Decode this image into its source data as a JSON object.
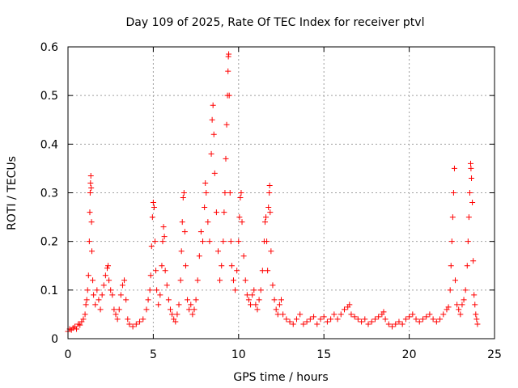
{
  "chart_data": {
    "type": "scatter",
    "title": "Day 109 of 2025, Rate Of TEC Index for receiver ptvl",
    "xlabel": "GPS time / hours",
    "ylabel": "ROTI / TECUs",
    "xlim": [
      0,
      25
    ],
    "ylim": [
      0,
      0.6
    ],
    "xticks": [
      0,
      5,
      10,
      15,
      20,
      25
    ],
    "yticks": [
      0,
      0.1,
      0.2,
      0.3,
      0.4,
      0.5,
      0.6
    ],
    "xtick_labels": [
      "0",
      "5",
      "10",
      "15",
      "20",
      "25"
    ],
    "ytick_labels": [
      "0",
      "0.1",
      "0.2",
      "0.3",
      "0.4",
      "0.5",
      "0.6"
    ],
    "grid": true,
    "marker": "plus",
    "color": "#ff0000",
    "series": [
      {
        "name": "ROTI",
        "points": [
          [
            0.0,
            0.015
          ],
          [
            0.1,
            0.02
          ],
          [
            0.2,
            0.018
          ],
          [
            0.3,
            0.022
          ],
          [
            0.4,
            0.025
          ],
          [
            0.5,
            0.02
          ],
          [
            0.6,
            0.03
          ],
          [
            0.7,
            0.028
          ],
          [
            0.8,
            0.035
          ],
          [
            0.9,
            0.04
          ],
          [
            1.0,
            0.05
          ],
          [
            1.05,
            0.07
          ],
          [
            1.1,
            0.08
          ],
          [
            1.15,
            0.1
          ],
          [
            1.2,
            0.13
          ],
          [
            1.25,
            0.2
          ],
          [
            1.28,
            0.26
          ],
          [
            1.3,
            0.3
          ],
          [
            1.32,
            0.32
          ],
          [
            1.34,
            0.335
          ],
          [
            1.36,
            0.31
          ],
          [
            1.38,
            0.24
          ],
          [
            1.4,
            0.18
          ],
          [
            1.45,
            0.12
          ],
          [
            1.5,
            0.09
          ],
          [
            1.6,
            0.07
          ],
          [
            1.7,
            0.1
          ],
          [
            1.8,
            0.08
          ],
          [
            1.9,
            0.06
          ],
          [
            2.0,
            0.09
          ],
          [
            2.1,
            0.11
          ],
          [
            2.2,
            0.13
          ],
          [
            2.3,
            0.145
          ],
          [
            2.35,
            0.15
          ],
          [
            2.4,
            0.12
          ],
          [
            2.5,
            0.1
          ],
          [
            2.6,
            0.09
          ],
          [
            2.7,
            0.06
          ],
          [
            2.8,
            0.05
          ],
          [
            2.9,
            0.04
          ],
          [
            3.0,
            0.06
          ],
          [
            3.1,
            0.09
          ],
          [
            3.2,
            0.11
          ],
          [
            3.3,
            0.12
          ],
          [
            3.4,
            0.08
          ],
          [
            3.5,
            0.04
          ],
          [
            3.6,
            0.03
          ],
          [
            3.8,
            0.025
          ],
          [
            4.0,
            0.03
          ],
          [
            4.2,
            0.035
          ],
          [
            4.4,
            0.04
          ],
          [
            4.6,
            0.06
          ],
          [
            4.7,
            0.08
          ],
          [
            4.8,
            0.1
          ],
          [
            4.85,
            0.13
          ],
          [
            4.9,
            0.19
          ],
          [
            4.95,
            0.25
          ],
          [
            5.0,
            0.28
          ],
          [
            5.05,
            0.27
          ],
          [
            5.1,
            0.2
          ],
          [
            5.15,
            0.14
          ],
          [
            5.2,
            0.1
          ],
          [
            5.3,
            0.07
          ],
          [
            5.4,
            0.09
          ],
          [
            5.5,
            0.15
          ],
          [
            5.55,
            0.2
          ],
          [
            5.6,
            0.23
          ],
          [
            5.65,
            0.21
          ],
          [
            5.7,
            0.14
          ],
          [
            5.8,
            0.11
          ],
          [
            5.9,
            0.08
          ],
          [
            6.0,
            0.06
          ],
          [
            6.1,
            0.05
          ],
          [
            6.2,
            0.04
          ],
          [
            6.3,
            0.035
          ],
          [
            6.4,
            0.05
          ],
          [
            6.5,
            0.07
          ],
          [
            6.6,
            0.12
          ],
          [
            6.65,
            0.18
          ],
          [
            6.7,
            0.24
          ],
          [
            6.75,
            0.29
          ],
          [
            6.8,
            0.3
          ],
          [
            6.85,
            0.22
          ],
          [
            6.9,
            0.15
          ],
          [
            7.0,
            0.08
          ],
          [
            7.1,
            0.06
          ],
          [
            7.2,
            0.07
          ],
          [
            7.3,
            0.05
          ],
          [
            7.4,
            0.06
          ],
          [
            7.5,
            0.08
          ],
          [
            7.6,
            0.12
          ],
          [
            7.7,
            0.17
          ],
          [
            7.8,
            0.22
          ],
          [
            7.9,
            0.2
          ],
          [
            8.0,
            0.27
          ],
          [
            8.05,
            0.32
          ],
          [
            8.1,
            0.3
          ],
          [
            8.2,
            0.24
          ],
          [
            8.3,
            0.2
          ],
          [
            8.4,
            0.38
          ],
          [
            8.45,
            0.45
          ],
          [
            8.5,
            0.48
          ],
          [
            8.55,
            0.42
          ],
          [
            8.6,
            0.34
          ],
          [
            8.7,
            0.26
          ],
          [
            8.8,
            0.18
          ],
          [
            8.9,
            0.12
          ],
          [
            9.0,
            0.15
          ],
          [
            9.1,
            0.2
          ],
          [
            9.15,
            0.26
          ],
          [
            9.2,
            0.3
          ],
          [
            9.25,
            0.37
          ],
          [
            9.3,
            0.44
          ],
          [
            9.35,
            0.5
          ],
          [
            9.38,
            0.55
          ],
          [
            9.4,
            0.58
          ],
          [
            9.42,
            0.585
          ],
          [
            9.45,
            0.5
          ],
          [
            9.5,
            0.3
          ],
          [
            9.55,
            0.2
          ],
          [
            9.6,
            0.15
          ],
          [
            9.7,
            0.12
          ],
          [
            9.8,
            0.1
          ],
          [
            9.9,
            0.14
          ],
          [
            10.0,
            0.2
          ],
          [
            10.05,
            0.25
          ],
          [
            10.1,
            0.29
          ],
          [
            10.15,
            0.3
          ],
          [
            10.2,
            0.24
          ],
          [
            10.3,
            0.17
          ],
          [
            10.4,
            0.12
          ],
          [
            10.5,
            0.09
          ],
          [
            10.6,
            0.08
          ],
          [
            10.7,
            0.07
          ],
          [
            10.8,
            0.09
          ],
          [
            10.9,
            0.1
          ],
          [
            11.0,
            0.07
          ],
          [
            11.1,
            0.06
          ],
          [
            11.2,
            0.08
          ],
          [
            11.3,
            0.1
          ],
          [
            11.4,
            0.14
          ],
          [
            11.5,
            0.2
          ],
          [
            11.55,
            0.24
          ],
          [
            11.6,
            0.25
          ],
          [
            11.65,
            0.2
          ],
          [
            11.7,
            0.14
          ],
          [
            11.75,
            0.27
          ],
          [
            11.8,
            0.3
          ],
          [
            11.82,
            0.315
          ],
          [
            11.85,
            0.26
          ],
          [
            11.9,
            0.18
          ],
          [
            12.0,
            0.11
          ],
          [
            12.1,
            0.08
          ],
          [
            12.2,
            0.06
          ],
          [
            12.3,
            0.05
          ],
          [
            12.4,
            0.07
          ],
          [
            12.5,
            0.08
          ],
          [
            12.6,
            0.05
          ],
          [
            12.8,
            0.04
          ],
          [
            13.0,
            0.035
          ],
          [
            13.2,
            0.03
          ],
          [
            13.4,
            0.04
          ],
          [
            13.6,
            0.05
          ],
          [
            13.8,
            0.03
          ],
          [
            14.0,
            0.035
          ],
          [
            14.2,
            0.04
          ],
          [
            14.4,
            0.045
          ],
          [
            14.6,
            0.03
          ],
          [
            14.8,
            0.04
          ],
          [
            15.0,
            0.045
          ],
          [
            15.2,
            0.035
          ],
          [
            15.4,
            0.04
          ],
          [
            15.6,
            0.05
          ],
          [
            15.8,
            0.04
          ],
          [
            16.0,
            0.05
          ],
          [
            16.2,
            0.06
          ],
          [
            16.4,
            0.065
          ],
          [
            16.5,
            0.07
          ],
          [
            16.6,
            0.05
          ],
          [
            16.8,
            0.045
          ],
          [
            17.0,
            0.04
          ],
          [
            17.2,
            0.035
          ],
          [
            17.4,
            0.04
          ],
          [
            17.6,
            0.03
          ],
          [
            17.8,
            0.035
          ],
          [
            18.0,
            0.04
          ],
          [
            18.2,
            0.045
          ],
          [
            18.4,
            0.05
          ],
          [
            18.5,
            0.055
          ],
          [
            18.6,
            0.04
          ],
          [
            18.8,
            0.03
          ],
          [
            19.0,
            0.025
          ],
          [
            19.2,
            0.03
          ],
          [
            19.4,
            0.035
          ],
          [
            19.6,
            0.03
          ],
          [
            19.8,
            0.04
          ],
          [
            20.0,
            0.045
          ],
          [
            20.2,
            0.05
          ],
          [
            20.4,
            0.04
          ],
          [
            20.6,
            0.035
          ],
          [
            20.8,
            0.04
          ],
          [
            21.0,
            0.045
          ],
          [
            21.2,
            0.05
          ],
          [
            21.4,
            0.04
          ],
          [
            21.6,
            0.035
          ],
          [
            21.8,
            0.04
          ],
          [
            22.0,
            0.05
          ],
          [
            22.2,
            0.06
          ],
          [
            22.3,
            0.065
          ],
          [
            22.4,
            0.1
          ],
          [
            22.45,
            0.15
          ],
          [
            22.5,
            0.2
          ],
          [
            22.55,
            0.25
          ],
          [
            22.6,
            0.3
          ],
          [
            22.65,
            0.35
          ],
          [
            22.7,
            0.12
          ],
          [
            22.8,
            0.07
          ],
          [
            22.9,
            0.06
          ],
          [
            23.0,
            0.05
          ],
          [
            23.1,
            0.07
          ],
          [
            23.2,
            0.08
          ],
          [
            23.3,
            0.1
          ],
          [
            23.4,
            0.15
          ],
          [
            23.45,
            0.2
          ],
          [
            23.5,
            0.25
          ],
          [
            23.55,
            0.3
          ],
          [
            23.6,
            0.36
          ],
          [
            23.62,
            0.35
          ],
          [
            23.65,
            0.33
          ],
          [
            23.7,
            0.28
          ],
          [
            23.75,
            0.16
          ],
          [
            23.8,
            0.09
          ],
          [
            23.85,
            0.07
          ],
          [
            23.9,
            0.05
          ],
          [
            23.95,
            0.04
          ],
          [
            24.0,
            0.03
          ]
        ]
      }
    ]
  }
}
